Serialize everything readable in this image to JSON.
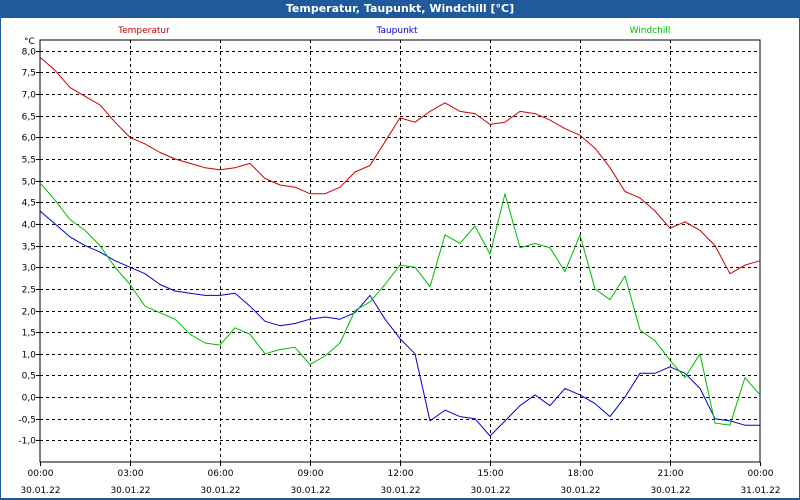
{
  "window": {
    "title": "Temperatur, Taupunkt, Windchill [°C]"
  },
  "chart_data": {
    "type": "line",
    "title": "Temperatur, Taupunkt, Windchill [°C]",
    "ylabel": "°C",
    "xlabel": "",
    "ylim": [
      -1.5,
      8.25
    ],
    "yticks": [
      8.0,
      7.5,
      7.0,
      6.5,
      6.0,
      5.5,
      5.0,
      4.5,
      4.0,
      3.5,
      3.0,
      2.5,
      2.0,
      1.5,
      1.0,
      0.5,
      0.0,
      -0.5,
      -1.0
    ],
    "ytick_labels": [
      "8,0",
      "7,5",
      "7,0",
      "6,5",
      "6,0",
      "5,5",
      "5,0",
      "4,5",
      "4,0",
      "3,5",
      "3,0",
      "2,5",
      "2,0",
      "1,5",
      "1,0",
      "0,5",
      "0,0",
      "-0,5",
      "-1,0"
    ],
    "xlim": [
      0,
      24
    ],
    "xticks": [
      0,
      3,
      6,
      9,
      12,
      15,
      18,
      21,
      24
    ],
    "xtick_time_labels": [
      "00:00",
      "03:00",
      "06:00",
      "09:00",
      "12:00",
      "15:00",
      "18:00",
      "21:00",
      "00:00"
    ],
    "xtick_date_labels": [
      "30.01.22",
      "30.01.22",
      "30.01.22",
      "30.01.22",
      "30.01.22",
      "30.01.22",
      "30.01.22",
      "30.01.22",
      "31.01.22"
    ],
    "grid": true,
    "legend": "top",
    "x": [
      0,
      0.5,
      1,
      1.5,
      2,
      2.5,
      3,
      3.5,
      4,
      4.5,
      5,
      5.5,
      6,
      6.5,
      7,
      7.5,
      8,
      8.5,
      9,
      9.5,
      10,
      10.5,
      11,
      11.5,
      12,
      12.5,
      13,
      13.5,
      14,
      14.5,
      15,
      15.5,
      16,
      16.5,
      17,
      17.5,
      18,
      18.5,
      19,
      19.5,
      20,
      20.5,
      21,
      21.5,
      22,
      22.5,
      23,
      23.5,
      24
    ],
    "series": [
      {
        "name": "Temperatur",
        "color": "#cc0000",
        "values": [
          7.85,
          7.55,
          7.15,
          6.95,
          6.75,
          6.35,
          6.0,
          5.85,
          5.65,
          5.5,
          5.4,
          5.3,
          5.25,
          5.3,
          5.4,
          5.05,
          4.9,
          4.85,
          4.7,
          4.7,
          4.85,
          5.2,
          5.35,
          5.9,
          6.45,
          6.35,
          6.6,
          6.8,
          6.6,
          6.55,
          6.3,
          6.35,
          6.6,
          6.55,
          6.4,
          6.2,
          6.05,
          5.75,
          5.3,
          4.75,
          4.6,
          4.3,
          3.9,
          4.05,
          3.85,
          3.5,
          2.85,
          3.05,
          3.15
        ]
      },
      {
        "name": "Taupunkt",
        "color": "#0000cc",
        "values": [
          4.3,
          4.0,
          3.7,
          3.5,
          3.35,
          3.15,
          3.0,
          2.85,
          2.6,
          2.45,
          2.4,
          2.35,
          2.35,
          2.4,
          2.1,
          1.75,
          1.65,
          1.7,
          1.8,
          1.85,
          1.8,
          1.95,
          2.35,
          1.8,
          1.35,
          1.0,
          -0.55,
          -0.3,
          -0.45,
          -0.5,
          -0.9,
          -0.55,
          -0.2,
          0.05,
          -0.2,
          0.2,
          0.05,
          -0.15,
          -0.45,
          0.0,
          0.55,
          0.55,
          0.7,
          0.55,
          0.2,
          -0.5,
          -0.55,
          -0.65,
          -0.65
        ]
      },
      {
        "name": "Windchill",
        "color": "#00bb00",
        "values": [
          4.95,
          4.55,
          4.1,
          3.85,
          3.5,
          3.0,
          2.6,
          2.1,
          1.95,
          1.8,
          1.45,
          1.25,
          1.2,
          1.6,
          1.45,
          1.0,
          1.1,
          1.15,
          0.75,
          0.95,
          1.25,
          2.0,
          2.2,
          2.6,
          3.05,
          3.0,
          2.55,
          3.75,
          3.55,
          3.95,
          3.3,
          4.7,
          3.45,
          3.55,
          3.45,
          2.9,
          3.75,
          2.5,
          2.25,
          2.8,
          1.55,
          1.3,
          0.85,
          0.45,
          1.0,
          -0.6,
          -0.65,
          0.45,
          0.05
        ]
      }
    ]
  }
}
